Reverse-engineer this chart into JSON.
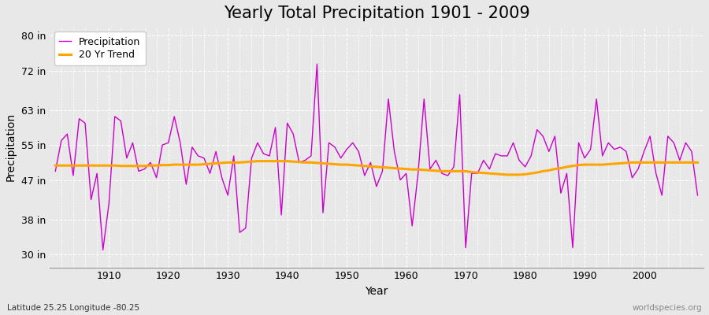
{
  "title": "Yearly Total Precipitation 1901 - 2009",
  "xlabel": "Year",
  "ylabel": "Precipitation",
  "subtitle": "Latitude 25.25 Longitude -80.25",
  "watermark": "worldspecies.org",
  "years": [
    1901,
    1902,
    1903,
    1904,
    1905,
    1906,
    1907,
    1908,
    1909,
    1910,
    1911,
    1912,
    1913,
    1914,
    1915,
    1916,
    1917,
    1918,
    1919,
    1920,
    1921,
    1922,
    1923,
    1924,
    1925,
    1926,
    1927,
    1928,
    1929,
    1930,
    1931,
    1932,
    1933,
    1934,
    1935,
    1936,
    1937,
    1938,
    1939,
    1940,
    1941,
    1942,
    1943,
    1944,
    1945,
    1946,
    1947,
    1948,
    1949,
    1950,
    1951,
    1952,
    1953,
    1954,
    1955,
    1956,
    1957,
    1958,
    1959,
    1960,
    1961,
    1962,
    1963,
    1964,
    1965,
    1966,
    1967,
    1968,
    1969,
    1970,
    1971,
    1972,
    1973,
    1974,
    1975,
    1976,
    1977,
    1978,
    1979,
    1980,
    1981,
    1982,
    1983,
    1984,
    1985,
    1986,
    1987,
    1988,
    1989,
    1990,
    1991,
    1992,
    1993,
    1994,
    1995,
    1996,
    1997,
    1998,
    1999,
    2000,
    2001,
    2002,
    2003,
    2004,
    2005,
    2006,
    2007,
    2008,
    2009
  ],
  "precip": [
    49.0,
    56.0,
    57.5,
    48.0,
    61.0,
    60.0,
    42.5,
    48.5,
    31.0,
    41.5,
    61.5,
    60.5,
    52.0,
    55.5,
    49.0,
    49.5,
    51.0,
    47.5,
    55.0,
    55.5,
    61.5,
    55.5,
    46.0,
    54.5,
    52.5,
    52.0,
    48.5,
    53.5,
    47.5,
    43.5,
    52.5,
    35.0,
    36.0,
    52.0,
    55.5,
    53.0,
    52.5,
    59.0,
    39.0,
    60.0,
    57.5,
    51.0,
    51.5,
    52.5,
    73.5,
    39.5,
    55.5,
    54.5,
    52.0,
    54.0,
    55.5,
    53.5,
    48.0,
    51.0,
    45.5,
    49.0,
    65.5,
    53.5,
    47.0,
    48.5,
    36.5,
    48.5,
    65.5,
    49.5,
    51.5,
    48.5,
    48.0,
    50.0,
    66.5,
    31.5,
    48.5,
    48.5,
    51.5,
    49.5,
    53.0,
    52.5,
    52.5,
    55.5,
    51.5,
    50.0,
    52.5,
    58.5,
    57.0,
    53.5,
    57.0,
    44.0,
    48.5,
    31.5,
    55.5,
    52.0,
    54.0,
    65.5,
    52.5,
    55.5,
    54.0,
    54.5,
    53.5,
    47.5,
    49.5,
    53.5,
    57.0,
    48.5,
    43.5,
    57.0,
    55.5,
    51.5,
    55.5,
    53.5,
    43.5
  ],
  "trend": [
    50.3,
    50.3,
    50.3,
    50.3,
    50.3,
    50.3,
    50.3,
    50.3,
    50.3,
    50.3,
    50.3,
    50.2,
    50.2,
    50.2,
    50.2,
    50.2,
    50.3,
    50.3,
    50.4,
    50.4,
    50.5,
    50.5,
    50.5,
    50.5,
    50.5,
    50.6,
    50.7,
    50.8,
    50.9,
    51.0,
    51.0,
    51.0,
    51.1,
    51.2,
    51.3,
    51.3,
    51.3,
    51.3,
    51.3,
    51.3,
    51.2,
    51.1,
    51.0,
    51.0,
    50.9,
    50.8,
    50.7,
    50.6,
    50.5,
    50.5,
    50.4,
    50.3,
    50.2,
    50.1,
    50.0,
    49.9,
    49.8,
    49.7,
    49.6,
    49.5,
    49.4,
    49.4,
    49.3,
    49.2,
    49.1,
    49.0,
    49.0,
    49.0,
    49.0,
    49.0,
    48.8,
    48.7,
    48.6,
    48.5,
    48.4,
    48.3,
    48.2,
    48.2,
    48.2,
    48.3,
    48.5,
    48.7,
    49.0,
    49.2,
    49.5,
    49.7,
    50.0,
    50.2,
    50.4,
    50.5,
    50.5,
    50.5,
    50.5,
    50.6,
    50.7,
    50.8,
    50.9,
    51.0,
    51.0,
    51.0,
    51.0,
    51.0,
    51.0,
    51.0,
    51.0,
    51.0,
    51.0,
    51.0,
    51.0
  ],
  "precip_color": "#cc00cc",
  "trend_color": "#ffa500",
  "background_color": "#e8e8e8",
  "grid_color": "#ffffff",
  "yticks": [
    30,
    38,
    47,
    55,
    63,
    72,
    80
  ],
  "ytick_labels": [
    "30 in",
    "38 in",
    "47 in",
    "55 in",
    "63 in",
    "72 in",
    "80 in"
  ],
  "ylim": [
    27,
    82
  ],
  "xlim": [
    1900,
    2010
  ],
  "xticks": [
    1910,
    1920,
    1930,
    1940,
    1950,
    1960,
    1970,
    1980,
    1990,
    2000
  ],
  "title_fontsize": 15,
  "axis_label_fontsize": 10,
  "tick_fontsize": 9,
  "legend_fontsize": 9
}
